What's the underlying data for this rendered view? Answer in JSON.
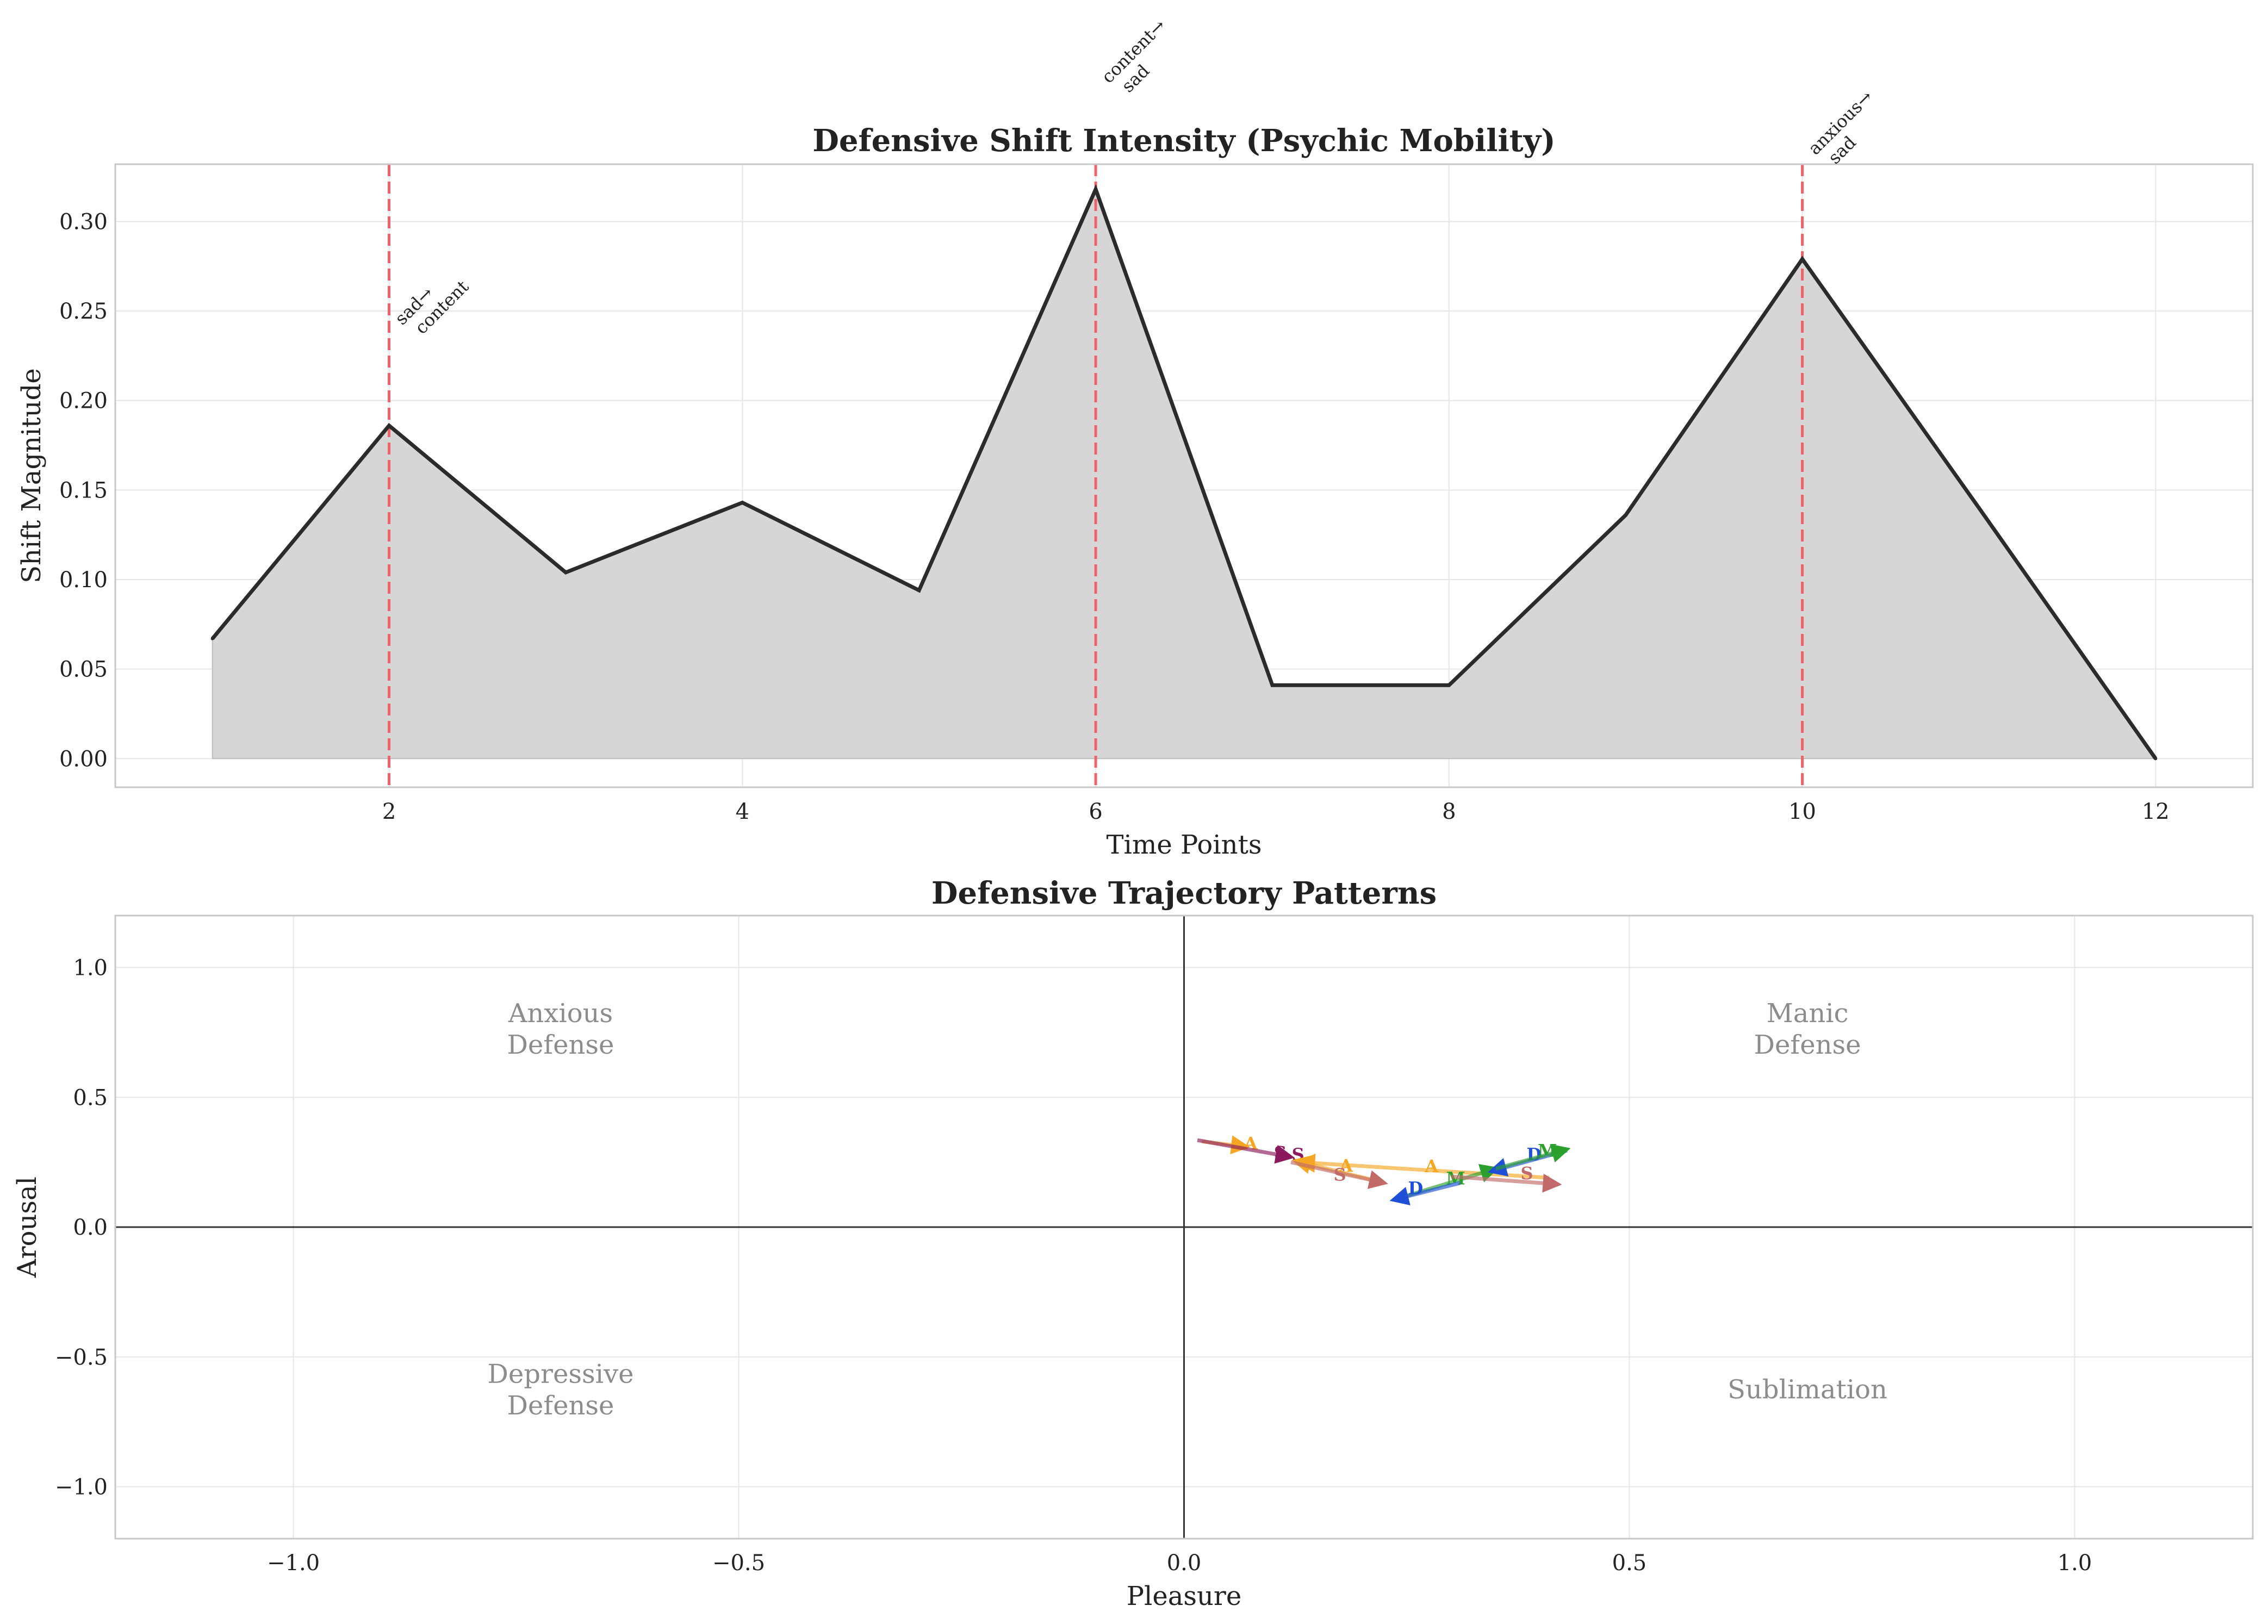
{
  "chart_data": [
    {
      "type": "area",
      "title": "Defensive Shift Intensity (Psychic Mobility)",
      "xlabel": "Time Points",
      "ylabel": "Shift Magnitude",
      "xlim": [
        0.45,
        12.55
      ],
      "ylim": [
        -0.016,
        0.332
      ],
      "xticks": [
        {
          "value": 2,
          "label": "2"
        },
        {
          "value": 4,
          "label": "4"
        },
        {
          "value": 6,
          "label": "6"
        },
        {
          "value": 8,
          "label": "8"
        },
        {
          "value": 10,
          "label": "10"
        },
        {
          "value": 12,
          "label": "12"
        }
      ],
      "yticks": [
        {
          "value": 0.0,
          "label": "0.00"
        },
        {
          "value": 0.05,
          "label": "0.05"
        },
        {
          "value": 0.1,
          "label": "0.10"
        },
        {
          "value": 0.15,
          "label": "0.15"
        },
        {
          "value": 0.2,
          "label": "0.20"
        },
        {
          "value": 0.25,
          "label": "0.25"
        },
        {
          "value": 0.3,
          "label": "0.30"
        }
      ],
      "grid": true,
      "x": [
        1,
        2,
        3,
        4,
        5,
        6,
        7,
        8,
        9,
        10,
        11,
        12
      ],
      "y": [
        0.067,
        0.186,
        0.104,
        0.143,
        0.094,
        0.318,
        0.041,
        0.041,
        0.136,
        0.279,
        0.14,
        0.0
      ],
      "line_color": "#2b2b2b",
      "fill_color": "#d6d6d6",
      "marker_color": "#f0626a",
      "transitions": [
        {
          "x": 2,
          "label_top": "sad→",
          "label_bottom": "content",
          "label_y": 0.24
        },
        {
          "x": 6,
          "label_top": "content→",
          "label_bottom": "sad",
          "label_y": 0.375
        },
        {
          "x": 10,
          "label_top": "anxious→",
          "label_bottom": "sad",
          "label_y": 0.335
        }
      ]
    },
    {
      "type": "scatter",
      "title": "Defensive Trajectory Patterns",
      "xlabel": "Pleasure",
      "ylabel": "Arousal",
      "xlim": [
        -1.2,
        1.2
      ],
      "ylim": [
        -1.2,
        1.2
      ],
      "xticks": [
        {
          "value": -1.0,
          "label": "−1.0"
        },
        {
          "value": -0.5,
          "label": "−0.5"
        },
        {
          "value": 0.0,
          "label": "0.0"
        },
        {
          "value": 0.5,
          "label": "0.5"
        },
        {
          "value": 1.0,
          "label": "1.0"
        }
      ],
      "yticks": [
        {
          "value": -1.0,
          "label": "−1.0"
        },
        {
          "value": -0.5,
          "label": "−0.5"
        },
        {
          "value": 0.0,
          "label": "0.0"
        },
        {
          "value": 0.5,
          "label": "0.5"
        },
        {
          "value": 1.0,
          "label": "1.0"
        }
      ],
      "grid": true,
      "quadrants": [
        {
          "line1": "Anxious",
          "line2": "Defense",
          "x": -0.7,
          "y": 0.79
        },
        {
          "line1": "Manic",
          "line2": "Defense",
          "x": 0.7,
          "y": 0.79
        },
        {
          "line1": "Depressive",
          "line2": "Defense",
          "x": -0.7,
          "y": -0.6
        },
        {
          "line1": "Sublimation",
          "line2": "",
          "x": 0.7,
          "y": -0.66
        }
      ],
      "trajectories": [
        {
          "label": "A",
          "color": "#f5a623",
          "from": [
            0.02,
            0.33
          ],
          "to": [
            0.07,
            0.31
          ],
          "label_at": [
            0.075,
            0.32
          ]
        },
        {
          "label": "S",
          "color": "#8b1a5c",
          "from": [
            0.015,
            0.335
          ],
          "to": [
            0.12,
            0.27
          ],
          "label_at": [
            0.108,
            0.285
          ]
        },
        {
          "label": "S",
          "color": "#8b1a5c",
          "from": [
            0.12,
            0.27
          ],
          "to": [
            0.12,
            0.27
          ],
          "label_at": [
            0.128,
            0.278
          ]
        },
        {
          "label": "A",
          "color": "#f5a623",
          "from": [
            0.22,
            0.175
          ],
          "to": [
            0.125,
            0.255
          ],
          "label_at": [
            0.182,
            0.235
          ]
        },
        {
          "label": "A",
          "color": "#f5a623",
          "from": [
            0.41,
            0.19
          ],
          "to": [
            0.13,
            0.25
          ],
          "label_at": [
            0.278,
            0.232
          ]
        },
        {
          "label": "S",
          "color": "#c26a6a",
          "from": [
            0.12,
            0.25
          ],
          "to": [
            0.225,
            0.17
          ],
          "label_at": [
            0.175,
            0.2
          ]
        },
        {
          "label": "M",
          "color": "#2ca02c",
          "from": [
            0.235,
            0.105
          ],
          "to": [
            0.35,
            0.225
          ],
          "label_at": [
            0.305,
            0.185
          ]
        },
        {
          "label": "D",
          "color": "#1f4fd6",
          "from": [
            0.31,
            0.17
          ],
          "to": [
            0.235,
            0.105
          ],
          "label_at": [
            0.26,
            0.148
          ]
        },
        {
          "label": "S",
          "color": "#c26a6a",
          "from": [
            0.3,
            0.195
          ],
          "to": [
            0.42,
            0.165
          ],
          "label_at": [
            0.385,
            0.205
          ]
        },
        {
          "label": "D",
          "color": "#1f4fd6",
          "from": [
            0.43,
            0.295
          ],
          "to": [
            0.345,
            0.215
          ],
          "label_at": [
            0.393,
            0.278
          ]
        },
        {
          "label": "M",
          "color": "#2ca02c",
          "from": [
            0.35,
            0.225
          ],
          "to": [
            0.43,
            0.3
          ],
          "label_at": [
            0.408,
            0.292
          ]
        }
      ]
    }
  ]
}
